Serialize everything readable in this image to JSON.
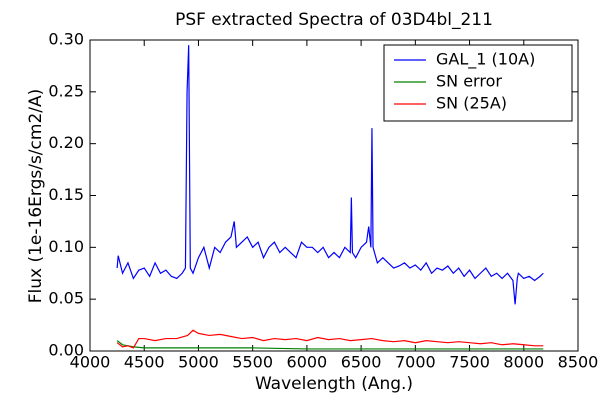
{
  "chart_data": {
    "type": "line",
    "title": "PSF extracted Spectra of 03D4bl_211",
    "title_color": "#ff0000",
    "xlabel": "Wavelength (Ang.)",
    "ylabel": "Flux (1e-16Ergs/s/cm2/A)",
    "xlim": [
      4000,
      8500
    ],
    "ylim": [
      0,
      0.3
    ],
    "xticks": [
      4000,
      4500,
      5000,
      5500,
      6000,
      6500,
      7000,
      7500,
      8000,
      8500
    ],
    "yticks": [
      {
        "value": 0,
        "label": "0.00"
      },
      {
        "value": 0.05,
        "label": "0.05"
      },
      {
        "value": 0.1,
        "label": "0.10"
      },
      {
        "value": 0.15,
        "label": "0.15"
      },
      {
        "value": 0.2,
        "label": "0.20"
      },
      {
        "value": 0.25,
        "label": "0.25"
      },
      {
        "value": 0.3,
        "label": "0.30"
      }
    ],
    "legend": "upper right",
    "series": [
      {
        "name": "GAL_1 (10A)",
        "color": "#0000ff",
        "x": [
          4250,
          4260,
          4300,
          4350,
          4400,
          4450,
          4500,
          4550,
          4600,
          4650,
          4700,
          4750,
          4800,
          4850,
          4880,
          4895,
          4910,
          4925,
          4950,
          5000,
          5050,
          5100,
          5150,
          5200,
          5250,
          5300,
          5330,
          5350,
          5400,
          5450,
          5500,
          5550,
          5600,
          5650,
          5700,
          5750,
          5800,
          5850,
          5900,
          5950,
          6000,
          6050,
          6100,
          6150,
          6200,
          6250,
          6300,
          6350,
          6400,
          6410,
          6420,
          6450,
          6500,
          6550,
          6570,
          6590,
          6600,
          6610,
          6650,
          6700,
          6750,
          6800,
          6850,
          6900,
          6950,
          7000,
          7050,
          7100,
          7150,
          7200,
          7250,
          7300,
          7350,
          7400,
          7450,
          7500,
          7550,
          7600,
          7650,
          7700,
          7750,
          7800,
          7850,
          7900,
          7920,
          7940,
          7950,
          8000,
          8050,
          8100,
          8150,
          8180
        ],
        "values": [
          0.08,
          0.092,
          0.075,
          0.085,
          0.07,
          0.078,
          0.08,
          0.072,
          0.085,
          0.075,
          0.078,
          0.072,
          0.07,
          0.075,
          0.08,
          0.25,
          0.295,
          0.08,
          0.075,
          0.09,
          0.1,
          0.08,
          0.1,
          0.095,
          0.105,
          0.11,
          0.125,
          0.1,
          0.105,
          0.11,
          0.1,
          0.105,
          0.09,
          0.1,
          0.105,
          0.095,
          0.1,
          0.095,
          0.09,
          0.105,
          0.1,
          0.1,
          0.095,
          0.1,
          0.09,
          0.095,
          0.09,
          0.1,
          0.095,
          0.148,
          0.095,
          0.09,
          0.1,
          0.105,
          0.12,
          0.1,
          0.215,
          0.1,
          0.085,
          0.09,
          0.085,
          0.08,
          0.082,
          0.085,
          0.08,
          0.083,
          0.078,
          0.085,
          0.075,
          0.08,
          0.078,
          0.082,
          0.075,
          0.08,
          0.072,
          0.078,
          0.07,
          0.075,
          0.08,
          0.072,
          0.075,
          0.07,
          0.075,
          0.068,
          0.045,
          0.07,
          0.075,
          0.07,
          0.072,
          0.068,
          0.072,
          0.075
        ]
      },
      {
        "name": "SN error",
        "color": "#008000",
        "x": [
          4250,
          4300,
          4400,
          4500,
          5000,
          5500,
          6000,
          6500,
          7000,
          7500,
          8000,
          8180
        ],
        "values": [
          0.01,
          0.006,
          0.004,
          0.003,
          0.003,
          0.003,
          0.002,
          0.002,
          0.002,
          0.002,
          0.002,
          0.002
        ]
      },
      {
        "name": "SN (25A)",
        "color": "#ff0000",
        "x": [
          4250,
          4300,
          4350,
          4400,
          4450,
          4500,
          4600,
          4700,
          4800,
          4900,
          4950,
          5000,
          5100,
          5200,
          5300,
          5400,
          5500,
          5600,
          5700,
          5800,
          5900,
          6000,
          6100,
          6200,
          6300,
          6400,
          6500,
          6600,
          6700,
          6800,
          6900,
          7000,
          7100,
          7200,
          7300,
          7400,
          7500,
          7600,
          7700,
          7800,
          7900,
          8000,
          8100,
          8180
        ],
        "values": [
          0.008,
          0.004,
          0.005,
          0.003,
          0.012,
          0.012,
          0.01,
          0.012,
          0.012,
          0.015,
          0.02,
          0.017,
          0.015,
          0.016,
          0.014,
          0.012,
          0.013,
          0.01,
          0.012,
          0.011,
          0.012,
          0.01,
          0.013,
          0.011,
          0.012,
          0.01,
          0.011,
          0.012,
          0.01,
          0.009,
          0.01,
          0.008,
          0.01,
          0.009,
          0.008,
          0.009,
          0.008,
          0.007,
          0.008,
          0.006,
          0.007,
          0.006,
          0.005,
          0.005
        ]
      }
    ]
  }
}
